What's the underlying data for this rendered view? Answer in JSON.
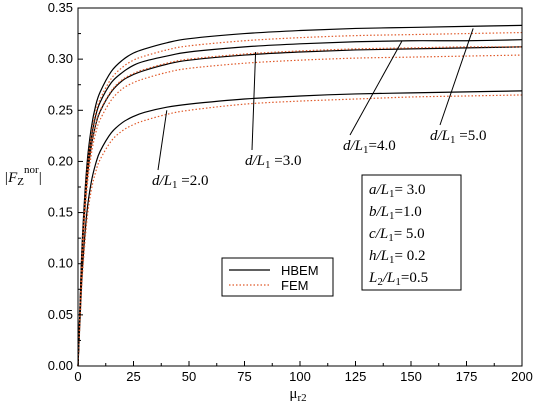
{
  "chart_data": {
    "type": "line",
    "xlabel": "μ",
    "xlabel_sub": "r2",
    "ylabel": "|F",
    "ylabel_sub": "Z",
    "ylabel_sup": "nor",
    "ylabel_end": "|",
    "xlim": [
      0,
      200
    ],
    "ylim": [
      0,
      0.35
    ],
    "xticks": [
      "0",
      "25",
      "50",
      "75",
      "100",
      "125",
      "150",
      "175",
      "200"
    ],
    "yticks": [
      "0.00",
      "0.05",
      "0.10",
      "0.15",
      "0.20",
      "0.25",
      "0.30",
      "0.35"
    ],
    "grid": false,
    "legend_position": "bottom-center",
    "legend": [
      {
        "label": "HBEM",
        "color": "#000000",
        "style": "solid"
      },
      {
        "label": "FEM",
        "color": "#e05a2a",
        "style": "dotted"
      }
    ],
    "x": [
      0,
      1,
      2,
      4,
      6,
      8,
      10,
      15,
      20,
      25,
      30,
      40,
      50,
      75,
      100,
      125,
      150,
      175,
      200
    ],
    "series": [
      {
        "method": "HBEM",
        "case": "d/L1=2.0",
        "values": [
          0.0,
          0.05,
          0.095,
          0.15,
          0.18,
          0.198,
          0.21,
          0.228,
          0.238,
          0.244,
          0.248,
          0.253,
          0.256,
          0.261,
          0.264,
          0.266,
          0.267,
          0.268,
          0.269
        ]
      },
      {
        "method": "FEM",
        "case": "d/L1=2.0",
        "values": [
          0.0,
          0.047,
          0.089,
          0.142,
          0.172,
          0.19,
          0.202,
          0.22,
          0.23,
          0.236,
          0.24,
          0.246,
          0.25,
          0.256,
          0.259,
          0.261,
          0.263,
          0.264,
          0.265
        ]
      },
      {
        "method": "HBEM",
        "case": "d/L1=3.0",
        "values": [
          0.0,
          0.06,
          0.115,
          0.18,
          0.215,
          0.236,
          0.249,
          0.268,
          0.279,
          0.285,
          0.289,
          0.295,
          0.299,
          0.304,
          0.307,
          0.309,
          0.31,
          0.311,
          0.312
        ]
      },
      {
        "method": "FEM",
        "case": "d/L1=3.0",
        "values": [
          0.0,
          0.057,
          0.108,
          0.172,
          0.207,
          0.228,
          0.241,
          0.26,
          0.271,
          0.277,
          0.281,
          0.287,
          0.291,
          0.296,
          0.299,
          0.301,
          0.302,
          0.303,
          0.304
        ]
      },
      {
        "method": "HBEM",
        "case": "d/L1=4.0",
        "values": [
          0.0,
          0.063,
          0.12,
          0.188,
          0.223,
          0.245,
          0.258,
          0.277,
          0.287,
          0.294,
          0.298,
          0.303,
          0.307,
          0.312,
          0.315,
          0.317,
          0.318,
          0.318,
          0.319
        ]
      },
      {
        "method": "FEM",
        "case": "d/L1=4.0",
        "values": [
          0.0,
          0.06,
          0.114,
          0.18,
          0.215,
          0.237,
          0.25,
          0.269,
          0.28,
          0.286,
          0.29,
          0.296,
          0.3,
          0.305,
          0.308,
          0.31,
          0.311,
          0.312,
          0.312
        ]
      },
      {
        "method": "HBEM",
        "case": "d/L1=5.0",
        "values": [
          0.0,
          0.066,
          0.126,
          0.196,
          0.233,
          0.255,
          0.268,
          0.288,
          0.299,
          0.306,
          0.31,
          0.316,
          0.32,
          0.325,
          0.328,
          0.33,
          0.331,
          0.332,
          0.333
        ]
      },
      {
        "method": "FEM",
        "case": "d/L1=5.0",
        "values": [
          0.0,
          0.063,
          0.121,
          0.189,
          0.226,
          0.248,
          0.261,
          0.281,
          0.292,
          0.299,
          0.303,
          0.309,
          0.313,
          0.318,
          0.321,
          0.323,
          0.324,
          0.325,
          0.326
        ]
      }
    ],
    "annotations": [
      {
        "id": "d2",
        "parts": [
          "d",
          "/L",
          "1",
          " =2.0"
        ],
        "tip": [
          40,
          0.25
        ]
      },
      {
        "id": "d3",
        "parts": [
          "d",
          "/L",
          "1",
          " =3.0"
        ],
        "tip": [
          80,
          0.307
        ]
      },
      {
        "id": "d4",
        "parts": [
          "d",
          "/L",
          "1",
          "=4.0"
        ],
        "tip": [
          146,
          0.318
        ]
      },
      {
        "id": "d5",
        "parts": [
          "d",
          "/L",
          "1",
          " =5.0"
        ],
        "tip": [
          178,
          0.33
        ]
      }
    ],
    "params": [
      {
        "parts": [
          "a",
          "/L",
          "1",
          "= 3.0"
        ]
      },
      {
        "parts": [
          "b",
          "/L",
          "1",
          "=1.0"
        ]
      },
      {
        "parts": [
          "c",
          "/L",
          "1",
          "= 5.0"
        ]
      },
      {
        "parts": [
          "h",
          "/L",
          "1",
          "= 0.2"
        ]
      },
      {
        "parts": [
          "L",
          "2",
          "/L",
          "1",
          "=0.5"
        ]
      }
    ]
  }
}
